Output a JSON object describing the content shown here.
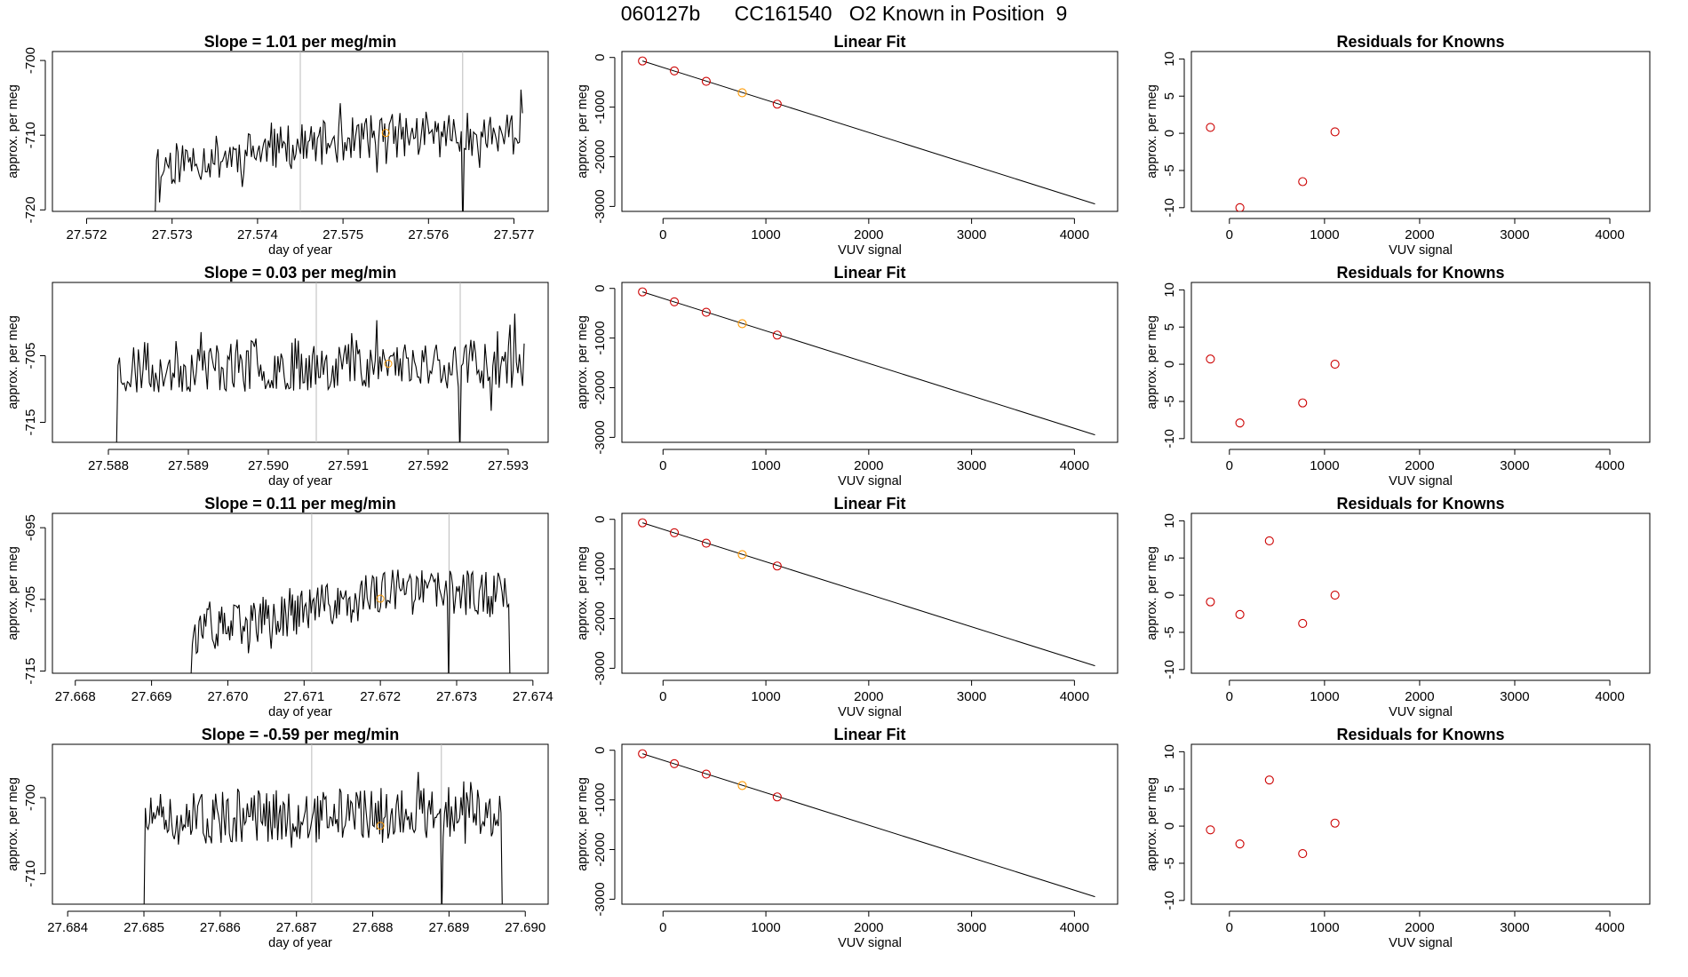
{
  "page_title": "060127b      CC161540   O2 Known in Position  9",
  "colors": {
    "line": "#000000",
    "marker": "#cc0000",
    "highlight": "#ff9900",
    "vline": "#bbbbbb"
  },
  "chart_data": [
    {
      "type": "line",
      "row": 0,
      "title": "Slope =  1.01  per meg/min",
      "xlabel": "day of year",
      "ylabel": "approx. per meg",
      "xlim": [
        27.5716,
        27.5774
      ],
      "ylim": [
        -720.2,
        -698.8
      ],
      "xticks": [
        27.572,
        27.573,
        27.574,
        27.575,
        27.576,
        27.577
      ],
      "xtick_labels": [
        "27.572",
        "27.573",
        "27.574",
        "27.575",
        "27.576",
        "27.577"
      ],
      "yticks": [
        -720,
        -710,
        -700
      ],
      "ytick_labels": [
        "-720",
        "-710",
        "-700"
      ],
      "vlines": [
        27.5745,
        27.5764
      ],
      "trace": {
        "x_start": 27.5728,
        "x_end": 27.5771,
        "n": 240,
        "seed": 11,
        "base": -714,
        "base2": -710,
        "amp": 3.0,
        "drops": [
          [
            27.5728,
            -722
          ],
          [
            27.57285,
            -719
          ],
          [
            27.5764,
            -723
          ]
        ]
      },
      "marker": {
        "x": 27.5755,
        "y": -709.7
      }
    },
    {
      "type": "line",
      "row": 1,
      "title": "Slope =  0.03  per meg/min",
      "xlabel": "day of year",
      "ylabel": "approx. per meg",
      "xlim": [
        27.5873,
        27.5935
      ],
      "ylim": [
        -718,
        -694
      ],
      "xticks": [
        27.588,
        27.589,
        27.59,
        27.591,
        27.592,
        27.593
      ],
      "xtick_labels": [
        "27.588",
        "27.589",
        "27.590",
        "27.591",
        "27.592",
        "27.593"
      ],
      "yticks": [
        -715,
        -705
      ],
      "ytick_labels": [
        "-715",
        "-705"
      ],
      "vlines": [
        27.5906,
        27.5924
      ],
      "trace": {
        "x_start": 27.5881,
        "x_end": 27.5932,
        "n": 260,
        "seed": 23,
        "base": -707,
        "base2": -706,
        "amp": 4.0,
        "drops": [
          [
            27.5881,
            -720
          ],
          [
            27.5924,
            -720
          ]
        ]
      },
      "marker": {
        "x": 27.5915,
        "y": -706.2
      }
    },
    {
      "type": "line",
      "row": 2,
      "title": "Slope =  0.11  per meg/min",
      "xlabel": "day of year",
      "ylabel": "approx. per meg",
      "xlim": [
        27.6677,
        27.6742
      ],
      "ylim": [
        -715.3,
        -693
      ],
      "xticks": [
        27.668,
        27.669,
        27.67,
        27.671,
        27.672,
        27.673,
        27.674
      ],
      "xtick_labels": [
        "27.668",
        "27.669",
        "27.670",
        "27.671",
        "27.672",
        "27.673",
        "27.674"
      ],
      "yticks": [
        -715,
        -705,
        -695
      ],
      "ytick_labels": [
        "-715",
        "-705",
        "-695"
      ],
      "vlines": [
        27.6711,
        27.6729
      ],
      "trace": {
        "x_start": 27.6695,
        "x_end": 27.6737,
        "n": 240,
        "seed": 37,
        "base": -710,
        "base2": -704,
        "amp": 3.2,
        "drops": [
          [
            27.6695,
            -717
          ],
          [
            27.6729,
            -717
          ],
          [
            27.6737,
            -717
          ]
        ]
      },
      "marker": {
        "x": 27.672,
        "y": -704.9
      }
    },
    {
      "type": "line",
      "row": 3,
      "title": "Slope =  -0.59  per meg/min",
      "xlabel": "day of year",
      "ylabel": "approx. per meg",
      "xlim": [
        27.6838,
        27.6903
      ],
      "ylim": [
        -714,
        -693
      ],
      "xticks": [
        27.684,
        27.685,
        27.686,
        27.687,
        27.688,
        27.689,
        27.69
      ],
      "xtick_labels": [
        "27.684",
        "27.685",
        "27.686",
        "27.687",
        "27.688",
        "27.689",
        "27.690"
      ],
      "yticks": [
        -710,
        -700
      ],
      "ytick_labels": [
        "-710",
        "-700"
      ],
      "vlines": [
        27.6872,
        27.6889
      ],
      "trace": {
        "x_start": 27.685,
        "x_end": 27.6897,
        "n": 260,
        "seed": 51,
        "base": -703,
        "base2": -702,
        "amp": 3.4,
        "drops": [
          [
            27.685,
            -716
          ],
          [
            27.6889,
            -716
          ],
          [
            27.6897,
            -716
          ]
        ]
      },
      "marker": {
        "x": 27.6881,
        "y": -703.7
      }
    },
    {
      "type": "scatter",
      "row": 0,
      "title": "Linear Fit",
      "xlabel": "VUV signal",
      "ylabel": "approx. per meg",
      "xlim": [
        -400,
        4420
      ],
      "ylim": [
        -3100,
        120
      ],
      "xticks": [
        0,
        1000,
        2000,
        3000,
        4000
      ],
      "yticks": [
        -3000,
        -2000,
        -1000,
        0
      ],
      "fit_line": [
        [
          -200,
          -70
        ],
        [
          4200,
          -2950
        ]
      ],
      "points": [
        [
          -200,
          -70
        ],
        [
          110,
          -270
        ],
        [
          420,
          -480
        ],
        [
          770,
          -710
        ],
        [
          1110,
          -940
        ]
      ],
      "highlight_index": 3
    },
    {
      "type": "scatter",
      "row": 1,
      "title": "Linear Fit",
      "xlabel": "VUV signal",
      "ylabel": "approx. per meg",
      "xlim": [
        -400,
        4420
      ],
      "ylim": [
        -3100,
        120
      ],
      "xticks": [
        0,
        1000,
        2000,
        3000,
        4000
      ],
      "yticks": [
        -3000,
        -2000,
        -1000,
        0
      ],
      "fit_line": [
        [
          -200,
          -70
        ],
        [
          4200,
          -2950
        ]
      ],
      "points": [
        [
          -200,
          -70
        ],
        [
          110,
          -270
        ],
        [
          420,
          -480
        ],
        [
          770,
          -710
        ],
        [
          1110,
          -940
        ]
      ],
      "highlight_index": 3
    },
    {
      "type": "scatter",
      "row": 2,
      "title": "Linear Fit",
      "xlabel": "VUV signal",
      "ylabel": "approx. per meg",
      "xlim": [
        -400,
        4420
      ],
      "ylim": [
        -3100,
        120
      ],
      "xticks": [
        0,
        1000,
        2000,
        3000,
        4000
      ],
      "yticks": [
        -3000,
        -2000,
        -1000,
        0
      ],
      "fit_line": [
        [
          -200,
          -70
        ],
        [
          4200,
          -2950
        ]
      ],
      "points": [
        [
          -200,
          -70
        ],
        [
          110,
          -270
        ],
        [
          420,
          -480
        ],
        [
          770,
          -710
        ],
        [
          1110,
          -940
        ]
      ],
      "highlight_index": 3
    },
    {
      "type": "scatter",
      "row": 3,
      "title": "Linear Fit",
      "xlabel": "VUV signal",
      "ylabel": "approx. per meg",
      "xlim": [
        -400,
        4420
      ],
      "ylim": [
        -3100,
        120
      ],
      "xticks": [
        0,
        1000,
        2000,
        3000,
        4000
      ],
      "yticks": [
        -3000,
        -2000,
        -1000,
        0
      ],
      "fit_line": [
        [
          -200,
          -70
        ],
        [
          4200,
          -2950
        ]
      ],
      "points": [
        [
          -200,
          -70
        ],
        [
          110,
          -270
        ],
        [
          420,
          -480
        ],
        [
          770,
          -710
        ],
        [
          1110,
          -940
        ]
      ],
      "highlight_index": 3
    },
    {
      "type": "scatter",
      "row": 0,
      "title": "Residuals for Knowns",
      "xlabel": "VUV signal",
      "ylabel": "approx. per meg",
      "xlim": [
        -400,
        4420
      ],
      "ylim": [
        -10.5,
        11
      ],
      "xticks": [
        0,
        1000,
        2000,
        3000,
        4000
      ],
      "yticks": [
        -10,
        -5,
        0,
        5,
        10
      ],
      "points": [
        [
          -200,
          0.8
        ],
        [
          110,
          -10
        ],
        [
          770,
          -6.5
        ],
        [
          1110,
          0.2
        ]
      ]
    },
    {
      "type": "scatter",
      "row": 1,
      "title": "Residuals for Knowns",
      "xlabel": "VUV signal",
      "ylabel": "approx. per meg",
      "xlim": [
        -400,
        4420
      ],
      "ylim": [
        -10.5,
        11
      ],
      "xticks": [
        0,
        1000,
        2000,
        3000,
        4000
      ],
      "yticks": [
        -10,
        -5,
        0,
        5,
        10
      ],
      "points": [
        [
          -200,
          0.7
        ],
        [
          110,
          -7.9
        ],
        [
          770,
          -5.2
        ],
        [
          1110,
          0.0
        ]
      ]
    },
    {
      "type": "scatter",
      "row": 2,
      "title": "Residuals for Knowns",
      "xlabel": "VUV signal",
      "ylabel": "approx. per meg",
      "xlim": [
        -400,
        4420
      ],
      "ylim": [
        -10.5,
        11
      ],
      "xticks": [
        0,
        1000,
        2000,
        3000,
        4000
      ],
      "yticks": [
        -10,
        -5,
        0,
        5,
        10
      ],
      "points": [
        [
          -200,
          -0.9
        ],
        [
          110,
          -2.6
        ],
        [
          420,
          7.3
        ],
        [
          770,
          -3.8
        ],
        [
          1110,
          0.0
        ]
      ]
    },
    {
      "type": "scatter",
      "row": 3,
      "title": "Residuals for Knowns",
      "xlabel": "VUV signal",
      "ylabel": "approx. per meg",
      "xlim": [
        -400,
        4420
      ],
      "ylim": [
        -10.5,
        11
      ],
      "xticks": [
        0,
        1000,
        2000,
        3000,
        4000
      ],
      "yticks": [
        -10,
        -5,
        0,
        5,
        10
      ],
      "points": [
        [
          -200,
          -0.5
        ],
        [
          110,
          -2.4
        ],
        [
          420,
          6.2
        ],
        [
          770,
          -3.7
        ],
        [
          1110,
          0.4
        ]
      ]
    }
  ]
}
